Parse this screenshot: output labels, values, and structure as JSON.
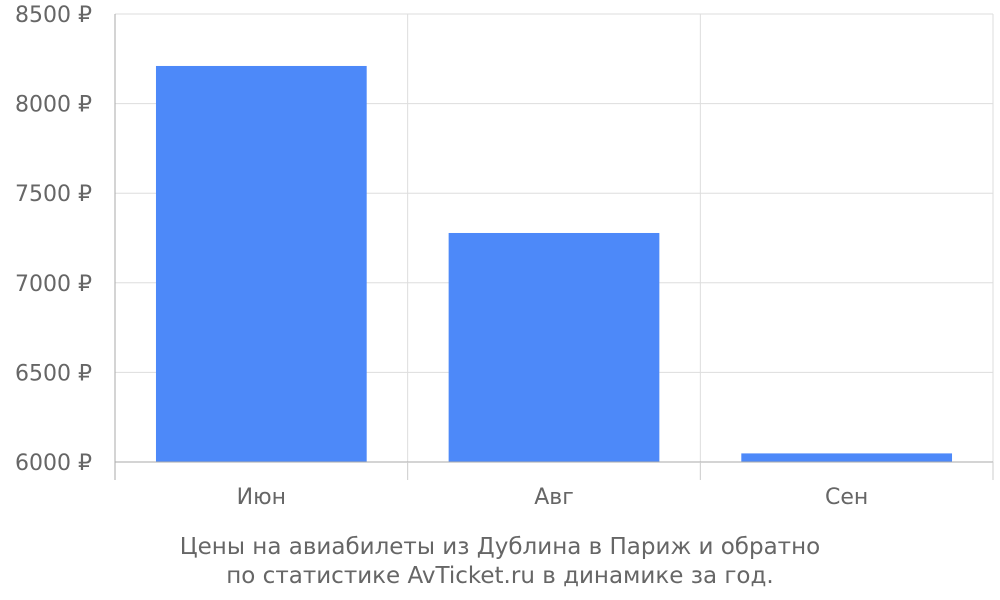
{
  "chart_data": {
    "type": "bar",
    "categories": [
      "Июн",
      "Авг",
      "Сен"
    ],
    "values": [
      8210,
      7278,
      6048
    ],
    "ylim": [
      6000,
      8500
    ],
    "yticks": [
      6000,
      6500,
      7000,
      7500,
      8000,
      8500
    ],
    "ytick_labels": [
      "6000 ₽",
      "6500 ₽",
      "7000 ₽",
      "7500 ₽",
      "8000 ₽",
      "8500 ₽"
    ],
    "bar_color": "#4d89f9",
    "grid": true
  },
  "caption": {
    "line1": "Цены на авиабилеты из Дублина в Париж и обратно",
    "line2": "по статистике AvTicket.ru в динамике за год."
  }
}
